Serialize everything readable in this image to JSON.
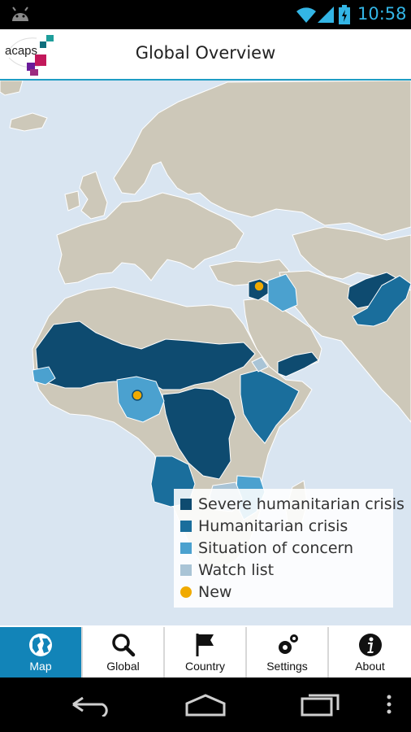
{
  "status_bar": {
    "time": "10:58",
    "icons": [
      "android-icon",
      "wifi-icon",
      "signal-icon",
      "battery-charging-icon"
    ]
  },
  "app_bar": {
    "logo_text": "acaps",
    "title": "Global Overview"
  },
  "legend": {
    "items": [
      {
        "label": "Severe humanitarian crisis",
        "color": "#0e4b70"
      },
      {
        "label": "Humanitarian crisis",
        "color": "#1a6e9c"
      },
      {
        "label": "Situation of concern",
        "color": "#4ba1cf"
      },
      {
        "label": "Watch list",
        "color": "#a9c4d6"
      },
      {
        "label": "New",
        "color": "#f0aa00"
      }
    ]
  },
  "tabs": [
    {
      "label": "Map",
      "icon": "globe-icon",
      "active": true
    },
    {
      "label": "Global",
      "icon": "search-icon",
      "active": false
    },
    {
      "label": "Country",
      "icon": "flag-icon",
      "active": false
    },
    {
      "label": "Settings",
      "icon": "gears-icon",
      "active": false
    },
    {
      "label": "About",
      "icon": "info-icon",
      "active": false
    }
  ],
  "colors": {
    "ocean": "#d9e5f1",
    "land": "#cdc8b9",
    "accent": "#1284b8"
  }
}
